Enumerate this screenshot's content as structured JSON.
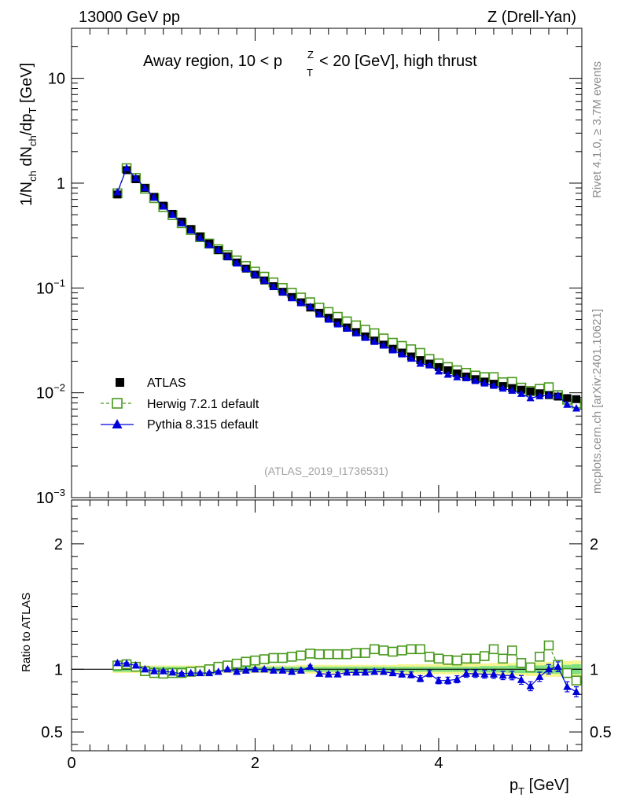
{
  "header": {
    "energy_label": "13000 GeV pp",
    "process_label": "Z (Drell-Yan)",
    "title_prefix": "Away region, 10 < p",
    "title_sup": "Z",
    "title_sub": "T",
    "title_suffix": " < 20 [GeV], high thrust"
  },
  "side_labels": {
    "rivet": "Rivet 4.1.0, ≥ 3.7M events",
    "mcplots": "mcplots.cern.ch [arXiv:2401.10621]"
  },
  "analysis_ref": "(ATLAS_2019_I1736531)",
  "chart_data": [
    {
      "type": "scatter",
      "title": "Away region, 10 < p_T^Z < 20 [GeV], high thrust",
      "ylabel": "1/N_ch dN_ch/dp_T [GeV]",
      "xlabel": "p_T [GeV]",
      "yscale": "log",
      "xlim": [
        0,
        5.56
      ],
      "ylim": [
        0.001,
        30
      ],
      "y_tick_labels": [
        "10^-3",
        "10^-2",
        "10^-1",
        "1",
        "10"
      ],
      "legend_position": "bottom-left",
      "x": [
        0.5,
        0.6,
        0.7,
        0.8,
        0.9,
        1.0,
        1.1,
        1.2,
        1.3,
        1.4,
        1.5,
        1.6,
        1.7,
        1.8,
        1.9,
        2.0,
        2.1,
        2.2,
        2.3,
        2.4,
        2.5,
        2.6,
        2.7,
        2.8,
        2.9,
        3.0,
        3.1,
        3.2,
        3.3,
        3.4,
        3.5,
        3.6,
        3.7,
        3.8,
        3.9,
        4.0,
        4.1,
        4.2,
        4.3,
        4.4,
        4.5,
        4.6,
        4.7,
        4.8,
        4.9,
        5.0,
        5.1,
        5.2,
        5.3,
        5.4,
        5.5
      ],
      "series": [
        {
          "name": "ATLAS",
          "marker": "square",
          "color": "#000000",
          "values": [
            0.78,
            1.33,
            1.09,
            0.9,
            0.74,
            0.61,
            0.51,
            0.43,
            0.365,
            0.31,
            0.265,
            0.23,
            0.2,
            0.175,
            0.153,
            0.134,
            0.118,
            0.104,
            0.092,
            0.082,
            0.073,
            0.065,
            0.058,
            0.052,
            0.047,
            0.042,
            0.038,
            0.0345,
            0.0315,
            0.0288,
            0.0263,
            0.0242,
            0.0222,
            0.0205,
            0.019,
            0.0176,
            0.0164,
            0.0153,
            0.0143,
            0.0135,
            0.0128,
            0.0122,
            0.0116,
            0.0111,
            0.0107,
            0.0103,
            0.0099,
            0.0095,
            0.0092,
            0.0089,
            0.0087
          ]
        },
        {
          "name": "Herwig 7.2.1 default",
          "marker": "open-square",
          "line": "dashed",
          "color": "#4a9a1e",
          "values": [
            0.8,
            1.39,
            1.12,
            0.885,
            0.72,
            0.59,
            0.495,
            0.415,
            0.357,
            0.305,
            0.265,
            0.234,
            0.206,
            0.183,
            0.162,
            0.143,
            0.128,
            0.113,
            0.1,
            0.09,
            0.081,
            0.073,
            0.065,
            0.059,
            0.053,
            0.048,
            0.044,
            0.04,
            0.037,
            0.033,
            0.03,
            0.028,
            0.026,
            0.024,
            0.021,
            0.0191,
            0.0176,
            0.0164,
            0.0155,
            0.0146,
            0.0141,
            0.0141,
            0.0126,
            0.0127,
            0.0112,
            0.0104,
            0.0109,
            0.0113,
            0.0095,
            0.0086,
            0.0079
          ]
        },
        {
          "name": "Pythia 8.315 default",
          "marker": "triangle",
          "line": "solid",
          "color": "#0000dd",
          "values": [
            0.82,
            1.39,
            1.12,
            0.9,
            0.73,
            0.6,
            0.5,
            0.415,
            0.355,
            0.3,
            0.257,
            0.23,
            0.199,
            0.172,
            0.152,
            0.134,
            0.118,
            0.103,
            0.091,
            0.08,
            0.072,
            0.066,
            0.056,
            0.05,
            0.045,
            0.041,
            0.037,
            0.0335,
            0.0307,
            0.0283,
            0.0255,
            0.0233,
            0.0212,
            0.019,
            0.0183,
            0.016,
            0.0149,
            0.0141,
            0.0138,
            0.013,
            0.0123,
            0.0117,
            0.011,
            0.0105,
            0.0098,
            0.0089,
            0.0093,
            0.0095,
            0.0094,
            0.0077,
            0.0071
          ]
        }
      ]
    },
    {
      "type": "scatter",
      "ylabel": "Ratio to ATLAS",
      "xlabel": "p_T [GeV]",
      "xlim": [
        0,
        5.56
      ],
      "ylim": [
        0.35,
        2.35
      ],
      "x_tick_labels": [
        "0",
        "2",
        "4"
      ],
      "y_tick_labels": [
        "0.5",
        "1",
        "2"
      ],
      "reference_line": 1,
      "band": {
        "name": "ATLAS uncertainty",
        "colors": [
          "#7fe07f",
          "#f5f590"
        ],
        "inner_halfwidth": [
          0.02,
          0.02,
          0.02,
          0.02,
          0.02,
          0.02,
          0.02,
          0.02,
          0.02,
          0.02,
          0.02,
          0.02,
          0.02,
          0.02,
          0.02,
          0.02,
          0.02,
          0.02,
          0.02,
          0.02,
          0.02,
          0.02,
          0.02,
          0.02,
          0.02,
          0.02,
          0.02,
          0.02,
          0.02,
          0.02,
          0.02,
          0.02,
          0.02,
          0.02,
          0.02,
          0.02,
          0.02,
          0.02,
          0.02,
          0.02,
          0.025,
          0.025,
          0.025,
          0.03,
          0.03,
          0.03,
          0.03,
          0.035,
          0.035,
          0.035,
          0.04
        ],
        "outer_halfwidth": [
          0.03,
          0.03,
          0.03,
          0.03,
          0.03,
          0.03,
          0.03,
          0.03,
          0.03,
          0.03,
          0.03,
          0.03,
          0.03,
          0.03,
          0.03,
          0.03,
          0.03,
          0.03,
          0.03,
          0.03,
          0.035,
          0.035,
          0.035,
          0.035,
          0.035,
          0.035,
          0.035,
          0.035,
          0.035,
          0.035,
          0.035,
          0.04,
          0.04,
          0.04,
          0.04,
          0.04,
          0.04,
          0.04,
          0.045,
          0.045,
          0.045,
          0.05,
          0.05,
          0.05,
          0.05,
          0.055,
          0.055,
          0.06,
          0.06,
          0.065,
          0.07
        ]
      },
      "series": [
        {
          "name": "Herwig 7.2.1 default",
          "values": [
            1.03,
            1.04,
            1.02,
            0.985,
            0.97,
            0.965,
            0.97,
            0.97,
            0.98,
            0.985,
            1.0,
            1.02,
            1.03,
            1.045,
            1.06,
            1.07,
            1.08,
            1.09,
            1.09,
            1.1,
            1.11,
            1.125,
            1.12,
            1.12,
            1.12,
            1.12,
            1.13,
            1.13,
            1.16,
            1.15,
            1.14,
            1.15,
            1.16,
            1.16,
            1.1,
            1.085,
            1.075,
            1.07,
            1.085,
            1.085,
            1.105,
            1.16,
            1.085,
            1.15,
            1.05,
            1.015,
            1.1,
            1.19,
            1.035,
            0.97,
            0.91
          ],
          "errors": [
            0.005,
            0.005,
            0.005,
            0.005,
            0.005,
            0.005,
            0.005,
            0.005,
            0.005,
            0.005,
            0.005,
            0.005,
            0.005,
            0.005,
            0.005,
            0.005,
            0.005,
            0.005,
            0.005,
            0.005,
            0.006,
            0.006,
            0.006,
            0.006,
            0.006,
            0.007,
            0.007,
            0.007,
            0.007,
            0.008,
            0.008,
            0.008,
            0.008,
            0.009,
            0.009,
            0.01,
            0.01,
            0.01,
            0.011,
            0.011,
            0.012,
            0.012,
            0.013,
            0.013,
            0.014,
            0.015,
            0.016,
            0.017,
            0.018,
            0.019,
            0.02
          ]
        },
        {
          "name": "Pythia 8.315 default",
          "values": [
            1.05,
            1.045,
            1.03,
            1.0,
            0.985,
            0.985,
            0.975,
            0.965,
            0.97,
            0.97,
            0.97,
            0.98,
            1.0,
            0.98,
            0.99,
            1.0,
            1.0,
            0.99,
            0.99,
            0.98,
            0.99,
            1.02,
            0.965,
            0.96,
            0.96,
            0.975,
            0.975,
            0.975,
            0.98,
            0.98,
            0.97,
            0.96,
            0.955,
            0.925,
            0.965,
            0.91,
            0.91,
            0.92,
            0.965,
            0.965,
            0.96,
            0.96,
            0.95,
            0.95,
            0.915,
            0.865,
            0.94,
            1.0,
            1.02,
            0.86,
            0.82
          ],
          "errors": [
            0.008,
            0.008,
            0.008,
            0.008,
            0.008,
            0.008,
            0.008,
            0.008,
            0.008,
            0.008,
            0.009,
            0.009,
            0.009,
            0.009,
            0.009,
            0.01,
            0.01,
            0.01,
            0.011,
            0.011,
            0.012,
            0.012,
            0.013,
            0.014,
            0.015,
            0.016,
            0.017,
            0.018,
            0.019,
            0.02,
            0.021,
            0.022,
            0.023,
            0.024,
            0.025,
            0.026,
            0.027,
            0.028,
            0.029,
            0.03,
            0.031,
            0.032,
            0.033,
            0.034,
            0.035,
            0.036,
            0.037,
            0.038,
            0.039,
            0.04,
            0.04
          ]
        }
      ]
    }
  ]
}
